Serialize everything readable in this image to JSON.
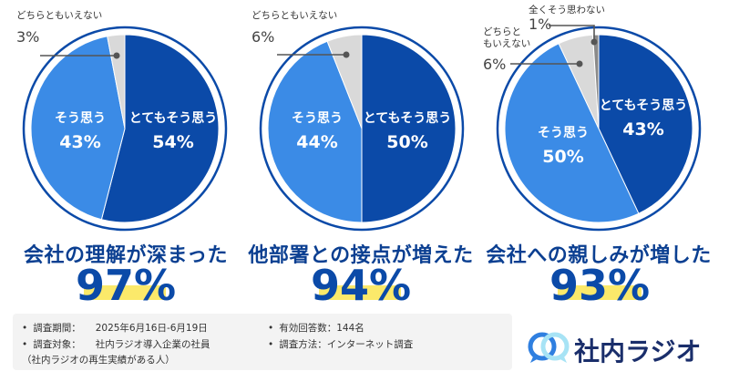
{
  "chart_data": [
    {
      "type": "pie",
      "title": "会社の理解が深まった",
      "total": "97%",
      "slices": [
        {
          "label": "とてもそう思う",
          "value": 54,
          "pct": "54%",
          "color": "#0b4aa8",
          "text_color": "#ffffff"
        },
        {
          "label": "そう思う",
          "value": 43,
          "pct": "43%",
          "color": "#3b8be6",
          "text_color": "#ffffff"
        },
        {
          "label": "どちらともいえない",
          "value": 3,
          "pct": "3%",
          "color": "#d9d9d9",
          "text_color": "#333333"
        }
      ]
    },
    {
      "type": "pie",
      "title": "他部署との接点が増えた",
      "total": "94%",
      "slices": [
        {
          "label": "とてもそう思う",
          "value": 50,
          "pct": "50%",
          "color": "#0b4aa8",
          "text_color": "#ffffff"
        },
        {
          "label": "そう思う",
          "value": 44,
          "pct": "44%",
          "color": "#3b8be6",
          "text_color": "#ffffff"
        },
        {
          "label": "どちらともいえない",
          "value": 6,
          "pct": "6%",
          "color": "#d9d9d9",
          "text_color": "#333333"
        }
      ]
    },
    {
      "type": "pie",
      "title": "会社への親しみが増した",
      "total": "93%",
      "slices": [
        {
          "label": "とてもそう思う",
          "value": 43,
          "pct": "43%",
          "color": "#0b4aa8",
          "text_color": "#ffffff"
        },
        {
          "label": "そう思う",
          "value": 50,
          "pct": "50%",
          "color": "#3b8be6",
          "text_color": "#ffffff"
        },
        {
          "label": "どちらと\nもいえない",
          "value": 6,
          "pct": "6%",
          "color": "#d9d9d9",
          "text_color": "#333333"
        },
        {
          "label": "全くそう思わない",
          "value": 1,
          "pct": "1%",
          "color": "#8a8a8a",
          "text_color": "#333333"
        }
      ]
    }
  ],
  "info": {
    "period_label": "調査期間：",
    "period_value": "2025年6月16日-6月19日",
    "target_label": "調査対象：",
    "target_value": "社内ラジオ導入企業の社員",
    "target_note": "（社内ラジオの再生実績がある人）",
    "responses_label": "有効回答数：",
    "responses_value": "144名",
    "method_label": "調査方法：",
    "method_value": "インターネット調査"
  },
  "logo": {
    "name": "社内ラジオ",
    "mark_color": "#2f7fe0",
    "mark_color_2": "#a7e3f5",
    "text_color": "#1a2e6b"
  },
  "colors": {
    "ring": "#0b4aa8",
    "highlight": "#fbe96a",
    "caption": "#0b3f91"
  }
}
